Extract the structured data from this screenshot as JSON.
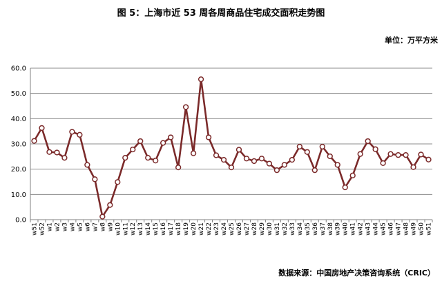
{
  "chart_data": {
    "type": "line",
    "title": "图 5：上海市近 53 周各周商品住宅成交面积走势图",
    "unit_label": "单位：万平方米",
    "source": "数据来源：中国房地产决策咨询系统（CRIC）",
    "ylim": [
      0,
      60
    ],
    "yticks": [
      "0.0",
      "10.0",
      "20.0",
      "30.0",
      "40.0",
      "50.0",
      "60.0"
    ],
    "grid": true,
    "line_color": "#7b2a2a",
    "x": [
      "w51",
      "w52",
      "w1",
      "w2",
      "w3",
      "w4",
      "w5",
      "w6",
      "w7",
      "w8",
      "w9",
      "w10",
      "w11",
      "w12",
      "w13",
      "w14",
      "w15",
      "w16",
      "w17",
      "w18",
      "w19",
      "w20",
      "w21",
      "w22",
      "w23",
      "w24",
      "w25",
      "w26",
      "w27",
      "w28",
      "w29",
      "w30",
      "w31",
      "w32",
      "w33",
      "w34",
      "w35",
      "w36",
      "w37",
      "w38",
      "w39",
      "w40",
      "w41",
      "w42",
      "w43",
      "w44",
      "w45",
      "w46",
      "w47",
      "w48",
      "w49",
      "w50",
      "w51"
    ],
    "values": [
      31.2,
      36.3,
      26.8,
      26.6,
      24.5,
      34.8,
      33.6,
      21.7,
      16.0,
      1.2,
      5.8,
      14.9,
      24.5,
      27.8,
      31.1,
      24.5,
      23.4,
      30.4,
      32.6,
      20.7,
      44.6,
      26.3,
      55.6,
      32.6,
      25.5,
      23.7,
      20.7,
      27.7,
      24.2,
      23.2,
      24.2,
      22.2,
      19.6,
      21.7,
      23.7,
      28.9,
      26.8,
      19.6,
      28.9,
      25.1,
      21.7,
      12.8,
      17.5,
      26.0,
      31.1,
      27.9,
      22.4,
      26.0,
      25.6,
      25.6,
      20.8,
      25.8,
      23.8
    ]
  }
}
